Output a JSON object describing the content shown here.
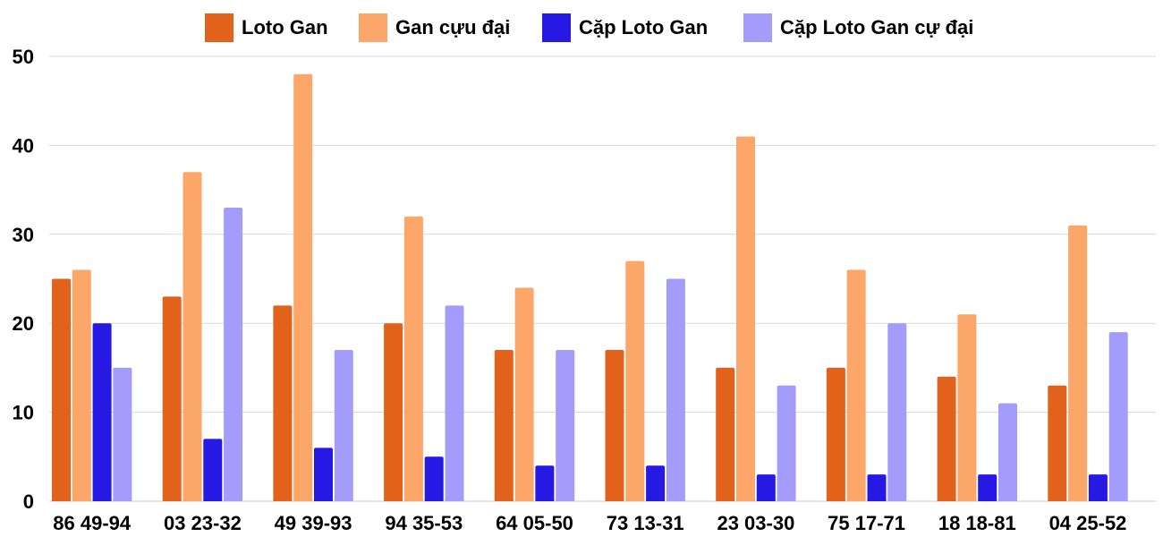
{
  "chart_data": {
    "type": "bar",
    "title": "",
    "xlabel": "",
    "ylabel": "",
    "ylim": [
      0,
      50
    ],
    "yticks": [
      0,
      10,
      20,
      30,
      40,
      50
    ],
    "grid": true,
    "legend_position": "top",
    "categories": [
      "86 49-94",
      "03 23-32",
      "49 39-93",
      "94 35-53",
      "64 05-50",
      "73 13-31",
      "23 03-30",
      "75 17-71",
      "18 18-81",
      "04 25-52"
    ],
    "series": [
      {
        "name": "Loto Gan",
        "color": "#e2621b",
        "values": [
          25,
          23,
          22,
          20,
          17,
          17,
          15,
          15,
          14,
          13
        ]
      },
      {
        "name": "Gan cựu đại",
        "color": "#fda66a",
        "values": [
          26,
          37,
          48,
          32,
          24,
          27,
          41,
          26,
          21,
          31
        ]
      },
      {
        "name": "Cặp Loto Gan",
        "color": "#2519e3",
        "values": [
          20,
          7,
          6,
          5,
          4,
          4,
          3,
          3,
          3,
          3
        ]
      },
      {
        "name": "Cặp Loto Gan cự đại",
        "color": "#a39cfa",
        "values": [
          15,
          33,
          17,
          22,
          17,
          25,
          13,
          20,
          11,
          19
        ]
      }
    ]
  }
}
